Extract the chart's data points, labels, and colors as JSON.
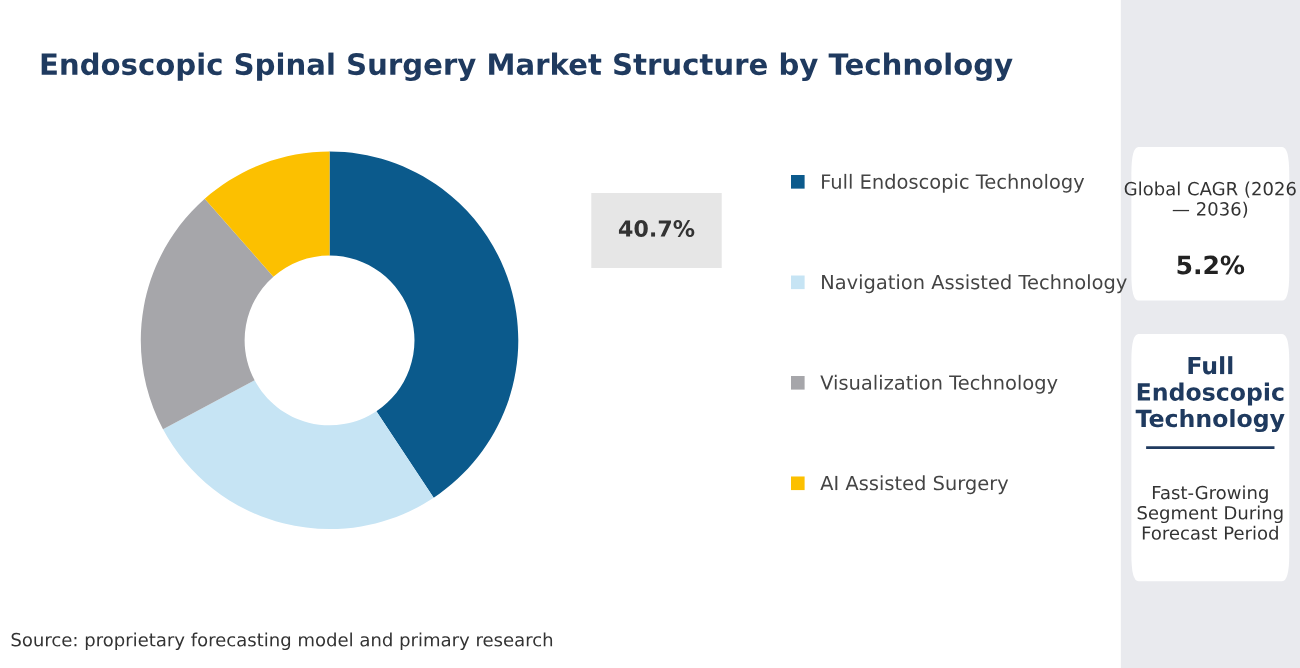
{
  "chart_data": [
    {
      "type": "donut",
      "title": "Endoscopic Spinal Surgery Market Structure by Technology",
      "categories": [
        "Full Endoscopic Technology",
        "Navigation Assisted Technology",
        "Visualization Technology",
        "AI Assisted Surgery"
      ],
      "values": [
        40.7,
        26.5,
        21.3,
        11.5
      ],
      "colors": [
        "#0b5a8c",
        "#c6e4f4",
        "#a6a6aa",
        "#fcc000"
      ],
      "value_labels": [
        "40.7%",
        null,
        null,
        null
      ],
      "legend": "right",
      "annotations": [
        "Source: proprietary forecasting model and primary research"
      ]
    },
    {
      "type": "other",
      "annotations": [
        "Global CAGR (2026 — 2036)",
        "5.2%",
        "Full Endoscopic Technology",
        "Fast-Growing Segment During Forecast Period"
      ]
    }
  ]
}
